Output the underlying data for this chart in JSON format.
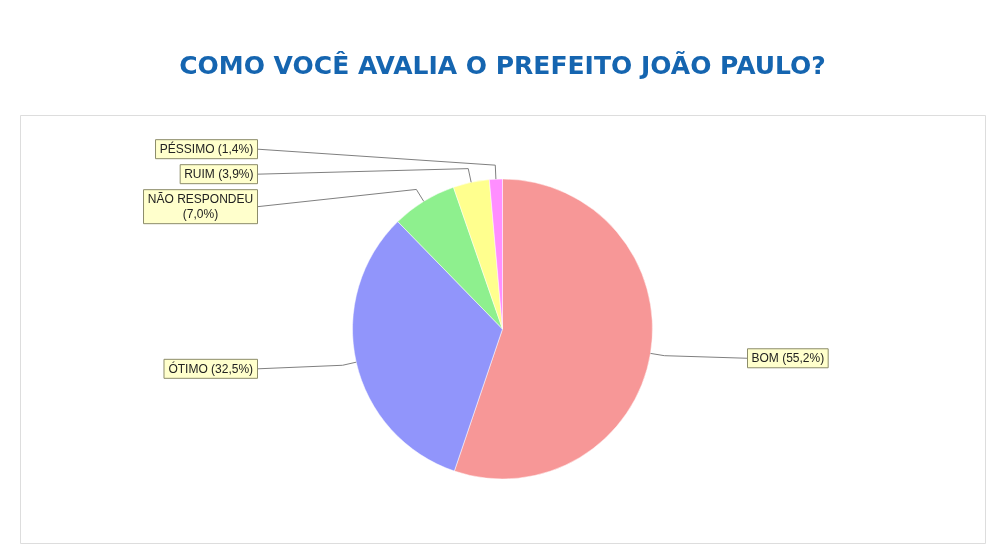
{
  "chart_data": {
    "type": "pie",
    "title": "COMO VOCÊ AVALIA O PREFEITO JOÃO PAULO?",
    "categories": [
      "BOM",
      "ÓTIMO",
      "NÃO RESPONDEU",
      "RUIM",
      "PÉSSIMO"
    ],
    "values": [
      55.2,
      32.5,
      7.0,
      3.9,
      1.4
    ],
    "colors": [
      "#f79292",
      "#8c90fb",
      "#88f088",
      "#ffff88",
      "#ff88ff"
    ],
    "value_labels": [
      "(55,2%)",
      "(32,5%)",
      "(7,0%)",
      "(3,9%)",
      "(1,4%)"
    ]
  }
}
